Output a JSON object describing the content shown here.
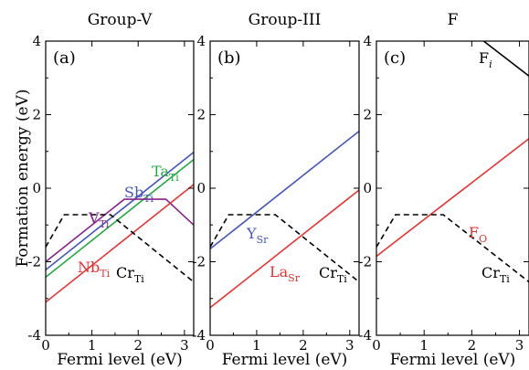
{
  "figure": {
    "ylabel": "Formation energy (eV)"
  },
  "chart_data": [
    {
      "type": "line",
      "title": "Group-V",
      "tag": "(a)",
      "xlabel": "Fermi level (eV)",
      "ylabel": "Formation energy (eV)",
      "xlim": [
        0,
        3.2
      ],
      "ylim": [
        -4,
        4
      ],
      "xticks": [
        0,
        1,
        2,
        3
      ],
      "yticks": [
        -4,
        -2,
        0,
        2,
        4
      ],
      "series": [
        {
          "name": "Ta",
          "sub": "Ti",
          "color": "#22aa44",
          "style": "solid",
          "x": [
            0,
            3.2
          ],
          "y": [
            -2.42,
            0.78
          ]
        },
        {
          "name": "Sb",
          "sub": "Ti",
          "color": "#4455bb",
          "style": "solid",
          "x": [
            0,
            3.2
          ],
          "y": [
            -2.22,
            0.98
          ]
        },
        {
          "name": "V",
          "sub": "Ti",
          "color": "#882288",
          "style": "solid",
          "x": [
            0,
            1.7,
            2.6,
            3.2
          ],
          "y": [
            -2.0,
            -0.3,
            -0.3,
            -1.0
          ]
        },
        {
          "name": "Nb",
          "sub": "Ti",
          "color": "#e83333",
          "style": "solid",
          "x": [
            0,
            3.2
          ],
          "y": [
            -3.1,
            0.1
          ]
        },
        {
          "name": "Cr",
          "sub": "Ti",
          "color": "#000000",
          "style": "dashed",
          "x": [
            0,
            0.4,
            1.4,
            3.2
          ],
          "y": [
            -1.6,
            -0.72,
            -0.72,
            -2.55
          ]
        }
      ]
    },
    {
      "type": "line",
      "title": "Group-III",
      "tag": "(b)",
      "xlabel": "Fermi level (eV)",
      "xlim": [
        0,
        3.2
      ],
      "ylim": [
        -4,
        4
      ],
      "xticks": [
        0,
        1,
        2,
        3
      ],
      "yticks": [
        -4,
        -2,
        0,
        2,
        4
      ],
      "series": [
        {
          "name": "Y",
          "sub": "Sr",
          "color": "#4455bb",
          "style": "solid",
          "x": [
            0,
            3.2
          ],
          "y": [
            -1.65,
            1.55
          ]
        },
        {
          "name": "La",
          "sub": "Sr",
          "color": "#e83333",
          "style": "solid",
          "x": [
            0,
            3.2
          ],
          "y": [
            -3.25,
            -0.05
          ]
        },
        {
          "name": "Cr",
          "sub": "Ti",
          "color": "#000000",
          "style": "dashed",
          "x": [
            0,
            0.4,
            1.4,
            3.2
          ],
          "y": [
            -1.6,
            -0.72,
            -0.72,
            -2.55
          ]
        }
      ]
    },
    {
      "type": "line",
      "title": "F",
      "tag": "(c)",
      "xlabel": "Fermi level (eV)",
      "xlim": [
        0,
        3.2
      ],
      "ylim": [
        -4,
        4
      ],
      "xticks": [
        0,
        1,
        2,
        3
      ],
      "yticks": [
        -4,
        -2,
        0,
        2,
        4
      ],
      "series": [
        {
          "name": "F",
          "sub": "i",
          "color": "#000000",
          "style": "solid",
          "x": [
            2.25,
            3.2
          ],
          "y": [
            4.0,
            3.05
          ]
        },
        {
          "name": "F",
          "sub": "O",
          "color": "#e83333",
          "style": "solid",
          "x": [
            0,
            3.2
          ],
          "y": [
            -1.85,
            1.35
          ]
        },
        {
          "name": "Cr",
          "sub": "Ti",
          "color": "#000000",
          "style": "dashed",
          "x": [
            0,
            0.4,
            1.4,
            3.2
          ],
          "y": [
            -1.6,
            -0.72,
            -0.72,
            -2.55
          ]
        }
      ]
    }
  ]
}
